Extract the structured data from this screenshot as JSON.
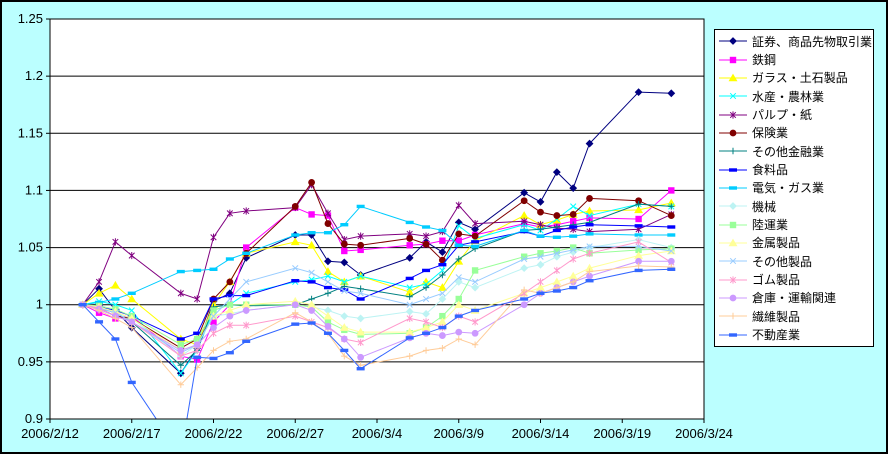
{
  "canvas": {
    "background_color": "#BBFFFF",
    "plot_background_color": "#FFFFFF",
    "axis_color": "#000000",
    "gridline_color": "#000000"
  },
  "chart_data": {
    "type": "line",
    "title": "",
    "xlabel": "",
    "ylabel": "",
    "grid": true,
    "legend_position": "right",
    "y_axis": {
      "min": 0.9,
      "max": 1.25,
      "step": 0.05,
      "labels": [
        "1.25",
        "1.2",
        "1.15",
        "1.1",
        "1.05",
        "1",
        "0.95",
        "0.9"
      ]
    },
    "x_axis": {
      "tick_days": [
        0,
        5,
        10,
        15,
        20,
        25,
        30,
        35,
        40
      ],
      "labels": [
        "2006/2/12",
        "2006/2/17",
        "2006/2/22",
        "2006/2/27",
        "2006/3/4",
        "2006/3/9",
        "2006/3/14",
        "2006/3/19",
        "2006/3/24"
      ]
    },
    "point_dates": [
      "2006/2/14",
      "2006/2/15",
      "2006/2/16",
      "2006/2/17",
      "2006/2/20",
      "2006/2/21",
      "2006/2/22",
      "2006/2/23",
      "2006/2/24",
      "2006/2/27",
      "2006/2/28",
      "2006/3/1",
      "2006/3/2",
      "2006/3/3",
      "2006/3/6",
      "2006/3/7",
      "2006/3/8",
      "2006/3/9",
      "2006/3/10",
      "2006/3/13",
      "2006/3/14",
      "2006/3/15",
      "2006/3/16",
      "2006/3/17",
      "2006/3/20",
      "2006/3/22"
    ],
    "day_offsets": [
      2,
      3,
      4,
      5,
      8,
      9,
      10,
      11,
      12,
      15,
      16,
      17,
      18,
      19,
      22,
      23,
      24,
      25,
      26,
      29,
      30,
      31,
      32,
      33,
      36,
      38
    ],
    "series": [
      {
        "name": "証券、商品先物取引業",
        "color": "#000080",
        "marker": "diamond",
        "values": [
          1.0,
          1.014,
          0.995,
          0.98,
          0.94,
          0.962,
          1.003,
          1.01,
          1.041,
          1.061,
          1.061,
          1.038,
          1.037,
          1.026,
          1.041,
          1.055,
          1.046,
          1.072,
          1.066,
          1.098,
          1.09,
          1.116,
          1.102,
          1.141,
          1.186,
          1.185
        ]
      },
      {
        "name": "鉄鋼",
        "color": "#FF00FF",
        "marker": "square",
        "values": [
          1.0,
          0.993,
          0.988,
          0.99,
          0.955,
          0.952,
          0.985,
          1.0,
          1.05,
          1.085,
          1.079,
          1.078,
          1.047,
          1.048,
          1.052,
          1.053,
          1.056,
          1.056,
          1.061,
          1.071,
          1.068,
          1.07,
          1.073,
          1.076,
          1.075,
          1.1
        ]
      },
      {
        "name": "ガラス・土石製品",
        "color": "#FFFF00",
        "marker": "triangle",
        "values": [
          1.0,
          1.01,
          1.017,
          1.005,
          0.97,
          0.965,
          1.0,
          1.02,
          1.045,
          1.055,
          1.052,
          1.029,
          1.02,
          1.025,
          1.011,
          1.02,
          1.015,
          1.038,
          1.056,
          1.078,
          1.07,
          1.074,
          1.079,
          1.082,
          1.083,
          1.089
        ]
      },
      {
        "name": "水産・農林業",
        "color": "#00FFFF",
        "marker": "x",
        "values": [
          1.0,
          1.003,
          1.0,
          0.995,
          0.94,
          0.96,
          0.995,
          1.0,
          1.01,
          1.02,
          1.022,
          1.025,
          1.02,
          1.025,
          1.015,
          1.018,
          1.03,
          1.069,
          1.058,
          1.07,
          1.065,
          1.075,
          1.086,
          1.078,
          1.088,
          1.086
        ]
      },
      {
        "name": "パルプ・紙",
        "color": "#800080",
        "marker": "star",
        "values": [
          1.0,
          1.02,
          1.055,
          1.043,
          1.01,
          1.005,
          1.059,
          1.08,
          1.082,
          1.085,
          1.105,
          1.08,
          1.057,
          1.06,
          1.062,
          1.06,
          1.064,
          1.087,
          1.071,
          1.073,
          1.07,
          1.067,
          1.066,
          1.064,
          1.066,
          1.079
        ]
      },
      {
        "name": "保険業",
        "color": "#800000",
        "marker": "circle",
        "values": [
          1.0,
          0.997,
          0.99,
          0.988,
          0.962,
          0.97,
          1.005,
          1.02,
          1.045,
          1.086,
          1.107,
          1.071,
          1.053,
          1.052,
          1.058,
          1.053,
          1.039,
          1.062,
          1.06,
          1.091,
          1.081,
          1.078,
          1.079,
          1.093,
          1.091,
          1.078
        ]
      },
      {
        "name": "その他金融業",
        "color": "#008080",
        "marker": "plus",
        "values": [
          1.0,
          0.997,
          0.993,
          0.985,
          0.947,
          0.96,
          0.998,
          1.0,
          0.999,
          1.0,
          1.005,
          1.01,
          1.016,
          1.014,
          1.007,
          1.015,
          1.026,
          1.04,
          1.049,
          1.065,
          1.066,
          1.068,
          1.07,
          1.072,
          1.088,
          1.086
        ]
      },
      {
        "name": "食料品",
        "color": "#0000FF",
        "marker": "dash",
        "values": [
          1.0,
          0.998,
          0.995,
          0.99,
          0.97,
          0.975,
          1.005,
          1.008,
          1.008,
          1.021,
          1.02,
          1.015,
          1.013,
          1.005,
          1.023,
          1.03,
          1.035,
          1.052,
          1.055,
          1.064,
          1.06,
          1.065,
          1.068,
          1.07,
          1.069,
          1.068
        ]
      },
      {
        "name": "電気・ガス業",
        "color": "#00CCFF",
        "marker": "dash",
        "values": [
          1.0,
          1.002,
          1.005,
          1.01,
          1.029,
          1.03,
          1.031,
          1.04,
          1.045,
          1.061,
          1.063,
          1.063,
          1.07,
          1.086,
          1.072,
          1.068,
          1.065,
          1.052,
          1.051,
          1.065,
          1.06,
          1.059,
          1.06,
          1.062,
          1.061,
          1.061
        ]
      },
      {
        "name": "機械",
        "color": "#BDF3F3",
        "marker": "diamond",
        "values": [
          1.0,
          0.998,
          0.993,
          0.988,
          0.955,
          0.965,
          0.99,
          0.992,
          0.995,
          1.0,
          0.998,
          0.995,
          0.99,
          0.988,
          0.994,
          0.992,
          1.005,
          1.02,
          1.015,
          1.032,
          1.035,
          1.042,
          1.046,
          1.05,
          1.057,
          1.05
        ]
      },
      {
        "name": "陸運業",
        "color": "#99FF99",
        "marker": "square",
        "values": [
          1.0,
          0.999,
          0.996,
          0.99,
          0.965,
          0.97,
          0.995,
          1.0,
          1.0,
          1.0,
          0.998,
          0.985,
          0.978,
          0.974,
          0.975,
          0.98,
          0.99,
          1.005,
          1.03,
          1.042,
          1.045,
          1.047,
          1.05,
          1.045,
          1.048,
          1.049
        ]
      },
      {
        "name": "金属製品",
        "color": "#FFFF99",
        "marker": "triangle",
        "values": [
          1.0,
          0.998,
          0.994,
          0.988,
          0.96,
          0.965,
          0.99,
          0.995,
          1.0,
          1.003,
          1.0,
          0.99,
          0.98,
          0.976,
          0.976,
          0.98,
          0.985,
          1.0,
          0.995,
          1.01,
          1.015,
          1.02,
          1.025,
          1.032,
          1.043,
          1.047
        ]
      },
      {
        "name": "その他製品",
        "color": "#99CCFF",
        "marker": "x",
        "values": [
          1.0,
          0.997,
          0.993,
          0.985,
          0.958,
          0.965,
          0.99,
          1.005,
          1.02,
          1.032,
          1.028,
          1.02,
          1.012,
          1.01,
          1.0,
          1.005,
          1.01,
          1.024,
          1.02,
          1.04,
          1.042,
          1.045,
          1.048,
          1.051,
          1.051,
          1.047
        ]
      },
      {
        "name": "ゴム製品",
        "color": "#FF99CC",
        "marker": "star",
        "values": [
          1.0,
          0.997,
          0.99,
          0.985,
          0.955,
          0.96,
          0.975,
          0.982,
          0.982,
          0.99,
          0.985,
          0.98,
          0.97,
          0.967,
          0.988,
          0.985,
          0.98,
          0.99,
          0.985,
          1.01,
          1.02,
          1.03,
          1.04,
          1.045,
          1.055,
          1.037
        ]
      },
      {
        "name": "倉庫・運輸関連",
        "color": "#CC99FF",
        "marker": "circle",
        "values": [
          1.0,
          0.996,
          0.99,
          0.985,
          0.96,
          0.965,
          0.98,
          0.99,
          0.995,
          1.0,
          0.995,
          0.981,
          0.97,
          0.954,
          0.971,
          0.975,
          0.973,
          0.976,
          0.975,
          1.0,
          1.01,
          1.015,
          1.02,
          1.025,
          1.038,
          1.038
        ]
      },
      {
        "name": "繊維製品",
        "color": "#FFCC99",
        "marker": "plus",
        "values": [
          1.0,
          0.995,
          0.988,
          0.98,
          0.93,
          0.945,
          0.96,
          0.968,
          0.97,
          0.993,
          0.985,
          0.975,
          0.955,
          0.947,
          0.955,
          0.96,
          0.962,
          0.97,
          0.965,
          1.013,
          1.01,
          1.015,
          1.02,
          1.029,
          1.034,
          1.033
        ]
      },
      {
        "name": "不動産業",
        "color": "#3366FF",
        "marker": "dash",
        "values": [
          1.0,
          0.985,
          0.97,
          0.932,
          0.868,
          0.954,
          0.953,
          0.958,
          0.968,
          0.983,
          0.984,
          0.975,
          0.96,
          0.944,
          0.971,
          0.975,
          0.98,
          0.99,
          0.995,
          1.005,
          1.01,
          1.012,
          1.015,
          1.021,
          1.03,
          1.031
        ]
      }
    ]
  }
}
